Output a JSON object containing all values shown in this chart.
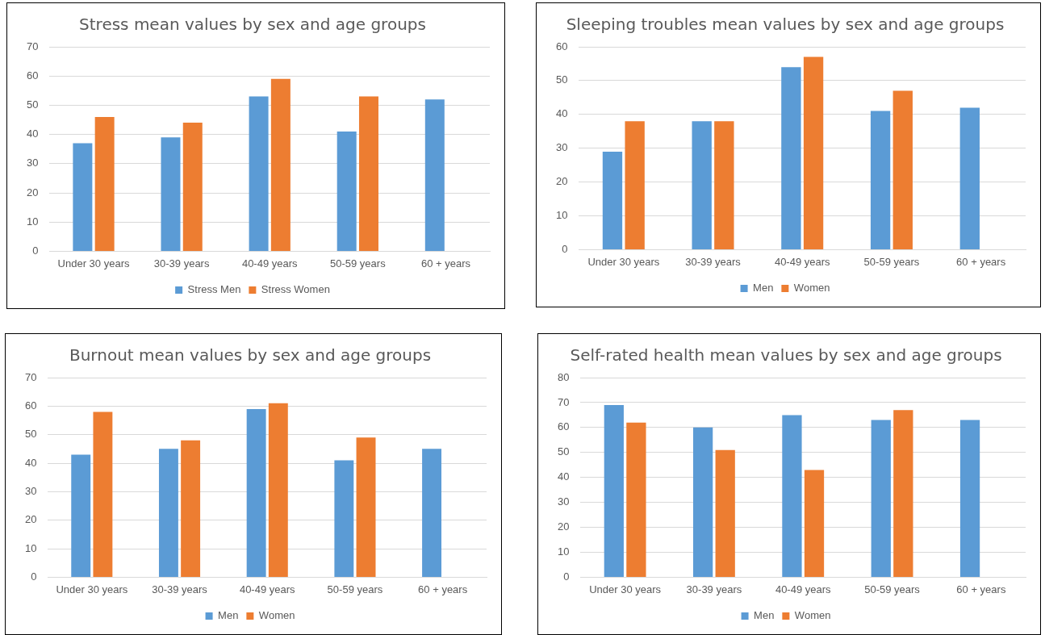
{
  "chart_data": [
    {
      "type": "bar",
      "title": "Stress mean values by sex and age groups",
      "categories": [
        "Under 30 years",
        "30-39 years",
        "40-49 years",
        "50-59 years",
        "60 + years"
      ],
      "series": [
        {
          "name": "Stress Men",
          "color": "#5b9bd5",
          "values": [
            37,
            39,
            53,
            41,
            52
          ]
        },
        {
          "name": "Stress Women",
          "color": "#ed7d31",
          "values": [
            46,
            44,
            59,
            53,
            null
          ]
        }
      ],
      "ylim": [
        0,
        70
      ],
      "yticks": [
        0,
        10,
        20,
        30,
        40,
        50,
        60,
        70
      ],
      "grid": "y",
      "legend": "bottom"
    },
    {
      "type": "bar",
      "title": "Sleeping troubles mean values by sex and age groups",
      "categories": [
        "Under 30 years",
        "30-39 years",
        "40-49 years",
        "50-59 years",
        "60 + years"
      ],
      "series": [
        {
          "name": "Men",
          "color": "#5b9bd5",
          "values": [
            29,
            38,
            54,
            41,
            42
          ]
        },
        {
          "name": "Women",
          "color": "#ed7d31",
          "values": [
            38,
            38,
            57,
            47,
            null
          ]
        }
      ],
      "ylim": [
        0,
        60
      ],
      "yticks": [
        0,
        10,
        20,
        30,
        40,
        50,
        60
      ],
      "grid": "y",
      "legend": "bottom"
    },
    {
      "type": "bar",
      "title": "Burnout mean values by sex and age groups",
      "categories": [
        "Under 30 years",
        "30-39 years",
        "40-49 years",
        "50-59 years",
        "60 + years"
      ],
      "series": [
        {
          "name": "Men",
          "color": "#5b9bd5",
          "values": [
            43,
            45,
            59,
            41,
            45
          ]
        },
        {
          "name": "Women",
          "color": "#ed7d31",
          "values": [
            58,
            48,
            61,
            49,
            null
          ]
        }
      ],
      "ylim": [
        0,
        70
      ],
      "yticks": [
        0,
        10,
        20,
        30,
        40,
        50,
        60,
        70
      ],
      "grid": "y",
      "legend": "bottom"
    },
    {
      "type": "bar",
      "title": "Self-rated health mean values by sex and age groups",
      "categories": [
        "Under 30 years",
        "30-39 years",
        "40-49 years",
        "50-59 years",
        "60 + years"
      ],
      "series": [
        {
          "name": "Men",
          "color": "#5b9bd5",
          "values": [
            69,
            60,
            65,
            63,
            63
          ]
        },
        {
          "name": "Women",
          "color": "#ed7d31",
          "values": [
            62,
            51,
            43,
            67,
            null
          ]
        }
      ],
      "ylim": [
        0,
        80
      ],
      "yticks": [
        0,
        10,
        20,
        30,
        40,
        50,
        60,
        70,
        80
      ],
      "grid": "y",
      "legend": "bottom"
    }
  ]
}
